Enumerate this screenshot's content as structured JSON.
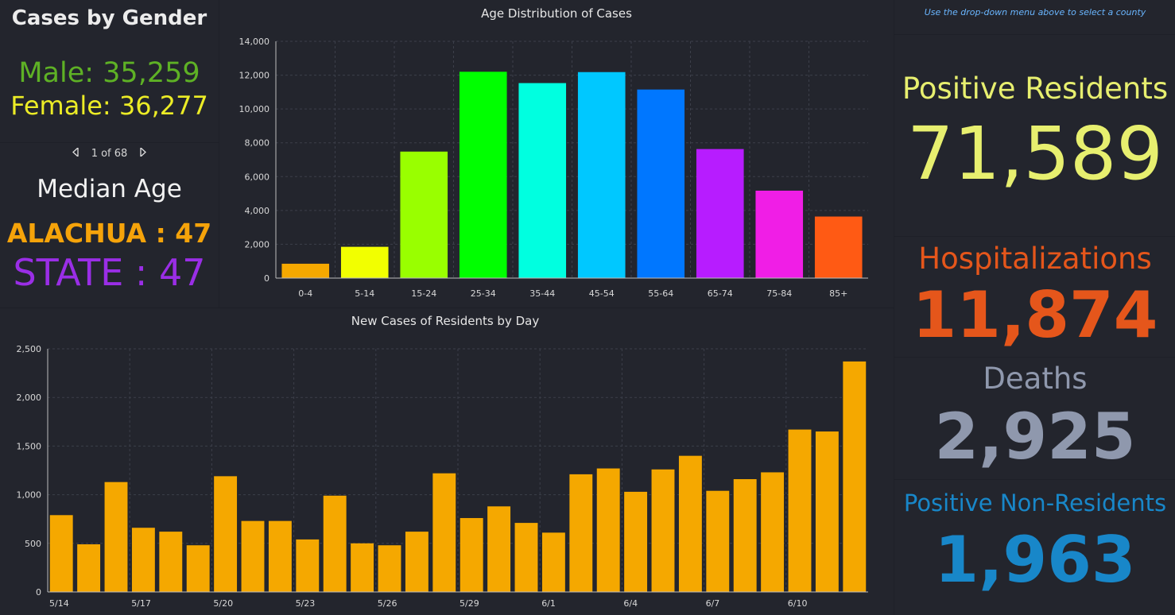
{
  "gender": {
    "title": "Cases by Gender",
    "male": "Male: 35,259",
    "female": "Female: 36,277"
  },
  "pager": {
    "prev_icon": "chevron-left-icon",
    "text": "1 of 68",
    "next_icon": "chevron-right-icon"
  },
  "median": {
    "title": "Median Age",
    "county": "ALACHUA : 47",
    "state": "STATE : 47"
  },
  "right": {
    "note": "Use the drop-down menu above to select a county",
    "positive_label": "Positive Residents",
    "positive_value": "71,589",
    "hosp_label": "Hospitalizations",
    "hosp_value": "11,874",
    "deaths_label": "Deaths",
    "deaths_value": "2,925",
    "nonres_label": "Positive Non-Residents",
    "nonres_value": "1,963"
  },
  "colors": {
    "background": "#1e2028",
    "daily_bar": "#f5a800"
  },
  "chart_data": [
    {
      "type": "bar",
      "title": "Age Distribution of Cases",
      "categories": [
        "0-4",
        "5-14",
        "15-24",
        "25-34",
        "35-44",
        "45-54",
        "55-64",
        "65-74",
        "75-84",
        "85+"
      ],
      "values": [
        850,
        1850,
        7480,
        12200,
        11530,
        12180,
        11150,
        7630,
        5170,
        3640
      ],
      "colors": [
        "#f5a800",
        "#f2ff00",
        "#99ff00",
        "#00ff00",
        "#00ffe0",
        "#00c8ff",
        "#0077ff",
        "#b71cff",
        "#f01ee6",
        "#ff5a14"
      ],
      "ylim": [
        0,
        14000
      ],
      "yticks": [
        "0",
        "2,000",
        "4,000",
        "6,000",
        "8,000",
        "10,000",
        "12,000",
        "14,000"
      ],
      "grid": true
    },
    {
      "type": "bar",
      "title": "New Cases of Residents by Day",
      "categories": [
        "5/14",
        "5/15",
        "5/16",
        "5/17",
        "5/18",
        "5/19",
        "5/20",
        "5/21",
        "5/22",
        "5/23",
        "5/24",
        "5/25",
        "5/26",
        "5/27",
        "5/28",
        "5/29",
        "5/30",
        "5/31",
        "6/1",
        "6/2",
        "6/3",
        "6/4",
        "6/5",
        "6/6",
        "6/7",
        "6/8",
        "6/9",
        "6/10",
        "6/11",
        "6/12"
      ],
      "xtick_labels": [
        "5/14",
        "5/17",
        "5/20",
        "5/23",
        "5/26",
        "5/29",
        "6/1",
        "6/4",
        "6/7",
        "6/10"
      ],
      "values": [
        790,
        490,
        1130,
        660,
        620,
        480,
        1190,
        730,
        730,
        540,
        990,
        500,
        480,
        620,
        1220,
        760,
        880,
        710,
        610,
        1210,
        1270,
        1030,
        1260,
        1400,
        1040,
        1160,
        1230,
        1670,
        1650,
        2370
      ],
      "ylim": [
        0,
        2500
      ],
      "yticks": [
        "0",
        "500",
        "1,000",
        "1,500",
        "2,000",
        "2,500"
      ],
      "grid": true
    }
  ]
}
